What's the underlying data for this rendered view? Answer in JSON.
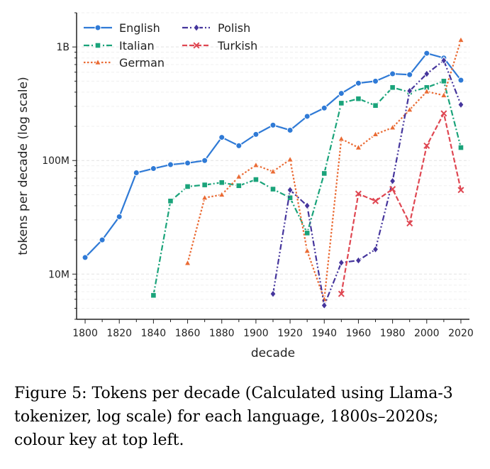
{
  "chart_data": {
    "type": "line",
    "xlabel": "decade",
    "ylabel": "tokens per decade  (log scale)",
    "yscale": "log",
    "xlim": [
      1795,
      2025
    ],
    "ylim": [
      4000000,
      2000000000
    ],
    "xticks": [
      1800,
      1820,
      1840,
      1860,
      1880,
      1900,
      1920,
      1940,
      1960,
      1980,
      2000,
      2020
    ],
    "yticks": [
      {
        "value": 10000000,
        "label": "10M"
      },
      {
        "value": 100000000,
        "label": "100M"
      },
      {
        "value": 1000000000,
        "label": "1B"
      }
    ],
    "grid": "horizontal dashed (major and minor)",
    "legend_position": "top-left",
    "series": [
      {
        "name": "English",
        "color": "#2f7ad6",
        "marker": "circle",
        "dash": "solid",
        "x": [
          1800,
          1810,
          1820,
          1830,
          1840,
          1850,
          1860,
          1870,
          1880,
          1890,
          1900,
          1910,
          1920,
          1930,
          1940,
          1950,
          1960,
          1970,
          1980,
          1990,
          2000,
          2010,
          2020
        ],
        "values": [
          14000000,
          20000000,
          32000000,
          78000000,
          85000000,
          92000000,
          95000000,
          100000000,
          160000000,
          135000000,
          170000000,
          205000000,
          185000000,
          245000000,
          290000000,
          390000000,
          480000000,
          500000000,
          580000000,
          570000000,
          880000000,
          800000000,
          510000000
        ]
      },
      {
        "name": "Italian",
        "color": "#1aa37a",
        "marker": "square",
        "dash": "dashdot",
        "x": [
          1840,
          1850,
          1860,
          1870,
          1880,
          1890,
          1900,
          1910,
          1920,
          1930,
          1940,
          1950,
          1960,
          1970,
          1980,
          1990,
          2000,
          2010,
          2020
        ],
        "values": [
          6500000,
          44000000,
          59000000,
          61000000,
          64000000,
          60000000,
          68000000,
          56000000,
          47000000,
          23000000,
          77000000,
          320000000,
          350000000,
          305000000,
          440000000,
          400000000,
          440000000,
          500000000,
          130000000
        ]
      },
      {
        "name": "German",
        "color": "#ea6b34",
        "marker": "triangle",
        "dash": "dotted",
        "x": [
          1860,
          1870,
          1880,
          1890,
          1900,
          1910,
          1920,
          1930,
          1940,
          1950,
          1960,
          1970,
          1980,
          1990,
          2000,
          2010,
          2020
        ],
        "values": [
          12500000,
          47000000,
          50000000,
          72000000,
          91000000,
          80000000,
          102000000,
          16000000,
          6000000,
          155000000,
          130000000,
          170000000,
          195000000,
          280000000,
          405000000,
          375000000,
          1150000000
        ]
      },
      {
        "name": "Polish",
        "color": "#45359c",
        "marker": "diamond",
        "dash": "dashdotdot",
        "x": [
          1910,
          1920,
          1930,
          1940,
          1950,
          1960,
          1970,
          1980,
          1990,
          2000,
          2010,
          2020
        ],
        "values": [
          6700000,
          55000000,
          40000000,
          5300000,
          12600000,
          13200000,
          16500000,
          66000000,
          410000000,
          580000000,
          760000000,
          310000000
        ]
      },
      {
        "name": "Turkish",
        "color": "#df4752",
        "marker": "x",
        "dash": "dashed",
        "x": [
          1950,
          1960,
          1970,
          1980,
          1990,
          2000,
          2010,
          2020
        ],
        "values": [
          6700000,
          51000000,
          44000000,
          56000000,
          28000000,
          135000000,
          260000000,
          55000000
        ]
      }
    ]
  },
  "caption": "Figure 5: Tokens per decade (Calculated using Llama-3\ntokenizer, log scale) for each language, 1800s–2020s;\ncolour key at top left."
}
